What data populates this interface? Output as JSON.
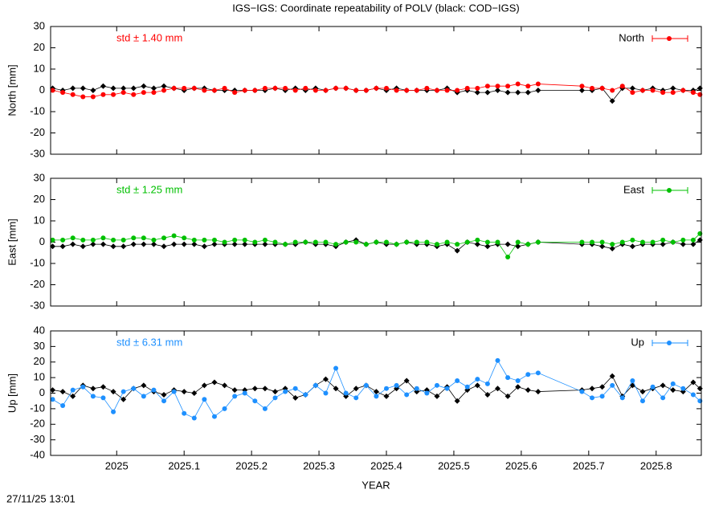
{
  "title": "IGS−IGS: Coordinate repeatability of POLV (black: COD−IGS)",
  "timestamp": "27/11/25 13:01",
  "chart_data": [
    {
      "type": "line",
      "ylabel": "North [mm]",
      "annotation": "std ± 1.40 mm",
      "legend": "top-right",
      "xlim": [
        2024.902,
        2025.867
      ],
      "ylim": [
        -30,
        30
      ],
      "yticks": [
        -30,
        -20,
        -10,
        0,
        10,
        20,
        30
      ],
      "x": [
        2024.905,
        2024.92,
        2024.935,
        2024.95,
        2024.965,
        2024.98,
        2024.995,
        2025.01,
        2025.025,
        2025.04,
        2025.055,
        2025.07,
        2025.085,
        2025.1,
        2025.115,
        2025.13,
        2025.145,
        2025.16,
        2025.175,
        2025.19,
        2025.205,
        2025.22,
        2025.235,
        2025.25,
        2025.265,
        2025.28,
        2025.295,
        2025.31,
        2025.325,
        2025.34,
        2025.355,
        2025.37,
        2025.385,
        2025.4,
        2025.415,
        2025.43,
        2025.445,
        2025.46,
        2025.475,
        2025.49,
        2025.505,
        2025.52,
        2025.535,
        2025.55,
        2025.565,
        2025.58,
        2025.595,
        2025.61,
        2025.625,
        2025.69,
        2025.705,
        2025.72,
        2025.735,
        2025.75,
        2025.765,
        2025.78,
        2025.795,
        2025.81,
        2025.825,
        2025.84,
        2025.855,
        2025.865
      ],
      "series": [
        {
          "color": "#000000",
          "marker": "diamond",
          "values": [
            1,
            0,
            1,
            1,
            0,
            2,
            1,
            1,
            1,
            2,
            1,
            2,
            1,
            0,
            1,
            1,
            0,
            0,
            0,
            0,
            0,
            0,
            1,
            0,
            1,
            0,
            1,
            0,
            1,
            1,
            0,
            0,
            1,
            0,
            1,
            0,
            0,
            0,
            0,
            1,
            -1,
            0,
            -1,
            -1,
            0,
            -1,
            -1,
            -1,
            0,
            0,
            0,
            1,
            -5,
            1,
            1,
            0,
            1,
            0,
            1,
            0,
            0,
            1
          ]
        },
        {
          "name": "North",
          "color": "#ff0000",
          "marker": "circle",
          "values": [
            0,
            -1,
            -2,
            -3,
            -3,
            -2,
            -2,
            -1,
            -2,
            -1,
            -1,
            0,
            1,
            1,
            1,
            0,
            0,
            1,
            -1,
            0,
            0,
            1,
            1,
            1,
            0,
            1,
            0,
            0,
            1,
            1,
            0,
            0,
            1,
            1,
            0,
            0,
            0,
            1,
            0,
            0,
            0,
            1,
            1,
            2,
            2,
            2,
            3,
            2,
            3,
            2,
            1,
            1,
            0,
            2,
            -1,
            0,
            0,
            -1,
            -1,
            0,
            -1,
            -2
          ]
        }
      ]
    },
    {
      "type": "line",
      "ylabel": "East [mm]",
      "annotation": "std ± 1.25 mm",
      "legend": "top-right",
      "xlim": [
        2024.902,
        2025.867
      ],
      "ylim": [
        -30,
        30
      ],
      "yticks": [
        -30,
        -20,
        -10,
        0,
        10,
        20,
        30
      ],
      "x": [
        2024.905,
        2024.92,
        2024.935,
        2024.95,
        2024.965,
        2024.98,
        2024.995,
        2025.01,
        2025.025,
        2025.04,
        2025.055,
        2025.07,
        2025.085,
        2025.1,
        2025.115,
        2025.13,
        2025.145,
        2025.16,
        2025.175,
        2025.19,
        2025.205,
        2025.22,
        2025.235,
        2025.25,
        2025.265,
        2025.28,
        2025.295,
        2025.31,
        2025.325,
        2025.34,
        2025.355,
        2025.37,
        2025.385,
        2025.4,
        2025.415,
        2025.43,
        2025.445,
        2025.46,
        2025.475,
        2025.49,
        2025.505,
        2025.52,
        2025.535,
        2025.55,
        2025.565,
        2025.58,
        2025.595,
        2025.61,
        2025.625,
        2025.69,
        2025.705,
        2025.72,
        2025.735,
        2025.75,
        2025.765,
        2025.78,
        2025.795,
        2025.81,
        2025.825,
        2025.84,
        2025.855,
        2025.865
      ],
      "series": [
        {
          "color": "#000000",
          "marker": "diamond",
          "values": [
            -2,
            -2,
            -1,
            -2,
            -1,
            -1,
            -2,
            -2,
            -1,
            -1,
            -1,
            -2,
            -1,
            -1,
            -1,
            -2,
            -1,
            -1,
            -1,
            -1,
            -1,
            -1,
            -1,
            -1,
            -1,
            0,
            -1,
            -1,
            -2,
            0,
            1,
            -1,
            0,
            -1,
            -1,
            0,
            -1,
            -1,
            -2,
            -1,
            -4,
            0,
            -1,
            -2,
            -1,
            -1,
            -2,
            -1,
            0,
            -1,
            -1,
            -2,
            -3,
            -1,
            -2,
            -1,
            -1,
            -1,
            0,
            -1,
            -1,
            1
          ]
        },
        {
          "name": "East",
          "color": "#00c000",
          "marker": "circle",
          "values": [
            1,
            1,
            2,
            1,
            1,
            2,
            1,
            1,
            2,
            2,
            1,
            2,
            3,
            2,
            1,
            1,
            1,
            0,
            1,
            1,
            0,
            1,
            0,
            -1,
            0,
            0,
            0,
            0,
            -1,
            0,
            0,
            -1,
            0,
            0,
            -1,
            0,
            0,
            0,
            -1,
            0,
            -1,
            0,
            1,
            0,
            0,
            -7,
            0,
            -1,
            0,
            0,
            0,
            0,
            -1,
            0,
            1,
            0,
            0,
            1,
            0,
            1,
            1,
            4
          ]
        }
      ]
    },
    {
      "type": "line",
      "ylabel": "Up [mm]",
      "xlabel": "YEAR",
      "annotation": "std ± 6.31 mm",
      "legend": "top-right",
      "xlim": [
        2024.902,
        2025.867
      ],
      "xticks": [
        2025,
        2025.1,
        2025.2,
        2025.3,
        2025.4,
        2025.5,
        2025.6,
        2025.7,
        2025.8
      ],
      "ylim": [
        -40,
        40
      ],
      "yticks": [
        -40,
        -30,
        -20,
        -10,
        0,
        10,
        20,
        30,
        40
      ],
      "x": [
        2024.905,
        2024.92,
        2024.935,
        2024.95,
        2024.965,
        2024.98,
        2024.995,
        2025.01,
        2025.025,
        2025.04,
        2025.055,
        2025.07,
        2025.085,
        2025.1,
        2025.115,
        2025.13,
        2025.145,
        2025.16,
        2025.175,
        2025.19,
        2025.205,
        2025.22,
        2025.235,
        2025.25,
        2025.265,
        2025.28,
        2025.295,
        2025.31,
        2025.325,
        2025.34,
        2025.355,
        2025.37,
        2025.385,
        2025.4,
        2025.415,
        2025.43,
        2025.445,
        2025.46,
        2025.475,
        2025.49,
        2025.505,
        2025.52,
        2025.535,
        2025.55,
        2025.565,
        2025.58,
        2025.595,
        2025.61,
        2025.625,
        2025.69,
        2025.705,
        2025.72,
        2025.735,
        2025.75,
        2025.765,
        2025.78,
        2025.795,
        2025.81,
        2025.825,
        2025.84,
        2025.855,
        2025.865
      ],
      "series": [
        {
          "color": "#000000",
          "marker": "diamond",
          "values": [
            2,
            1,
            -2,
            5,
            3,
            4,
            1,
            -4,
            3,
            5,
            1,
            -1,
            2,
            1,
            0,
            5,
            7,
            5,
            2,
            2,
            3,
            3,
            1,
            3,
            -3,
            -1,
            5,
            9,
            3,
            -2,
            3,
            5,
            1,
            -2,
            3,
            8,
            1,
            2,
            -2,
            4,
            -5,
            2,
            5,
            -1,
            3,
            -2,
            4,
            2,
            1,
            2,
            3,
            4,
            11,
            -2,
            5,
            1,
            3,
            5,
            2,
            1,
            7,
            3
          ]
        },
        {
          "name": "Up",
          "color": "#1e90ff",
          "marker": "circle",
          "values": [
            -4,
            -8,
            2,
            4,
            -2,
            -3,
            -12,
            1,
            3,
            -2,
            2,
            -5,
            1,
            -13,
            -16,
            -4,
            -15,
            -10,
            -2,
            0,
            -5,
            -10,
            -3,
            1,
            3,
            -1,
            5,
            0,
            16,
            0,
            -3,
            5,
            -2,
            3,
            5,
            -1,
            3,
            0,
            5,
            3,
            8,
            4,
            9,
            6,
            21,
            10,
            8,
            12,
            13,
            1,
            -3,
            -2,
            5,
            -3,
            8,
            -5,
            4,
            -3,
            6,
            3,
            -1,
            -5
          ]
        }
      ]
    }
  ]
}
